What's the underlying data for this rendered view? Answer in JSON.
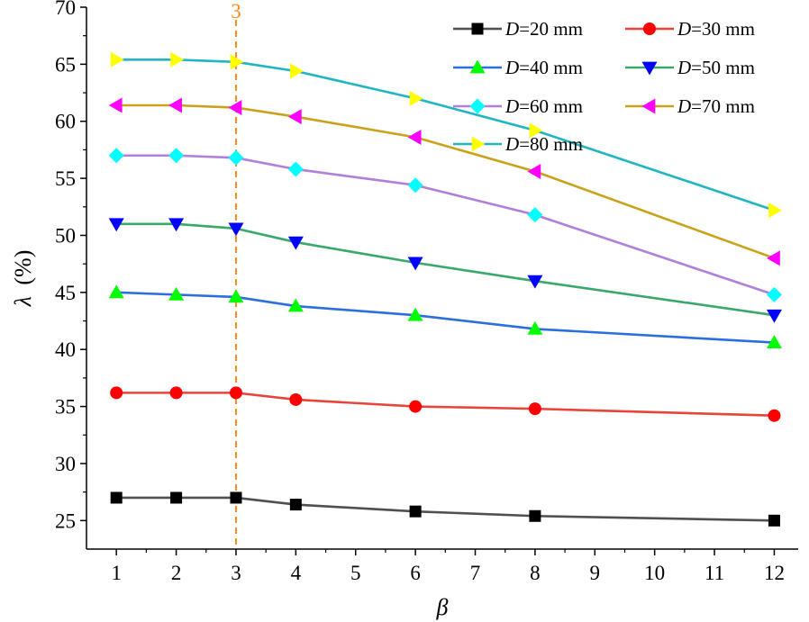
{
  "chart_data": {
    "type": "line",
    "title": "",
    "xlabel": "β",
    "ylabel_symbol": "λ",
    "ylabel_unit": "(%)",
    "xlim": [
      0.5,
      12.4
    ],
    "ylim": [
      22.5,
      70
    ],
    "x_ticks": [
      1,
      2,
      3,
      4,
      5,
      6,
      7,
      8,
      9,
      10,
      11,
      12
    ],
    "y_ticks": [
      25,
      30,
      35,
      40,
      45,
      50,
      55,
      60,
      65,
      70
    ],
    "x": [
      1,
      2,
      3,
      4,
      6,
      8,
      12
    ],
    "vertical_marker": {
      "x": 3,
      "label": "3",
      "color": "#ff8c1a"
    },
    "legend_position": "top-right",
    "series": [
      {
        "name": "D=20 mm",
        "var": "D",
        "text": "=20 mm",
        "line_color": "#505050",
        "marker": "square",
        "marker_color": "#000000",
        "values": [
          27.0,
          27.0,
          27.0,
          26.4,
          25.8,
          25.4,
          25.0
        ]
      },
      {
        "name": "D=30 mm",
        "var": "D",
        "text": "=30 mm",
        "line_color": "#e8443a",
        "marker": "circle",
        "marker_color": "#ff0000",
        "values": [
          36.2,
          36.2,
          36.2,
          35.6,
          35.0,
          34.8,
          34.2
        ]
      },
      {
        "name": "D=40 mm",
        "var": "D",
        "text": "=40 mm",
        "line_color": "#2a6fdb",
        "marker": "triangle-up",
        "marker_color": "#00ff00",
        "values": [
          45.0,
          44.8,
          44.6,
          43.8,
          43.0,
          41.8,
          40.6
        ]
      },
      {
        "name": "D=50 mm",
        "var": "D",
        "text": "=50 mm",
        "line_color": "#3aa86b",
        "marker": "triangle-down",
        "marker_color": "#0000ff",
        "values": [
          51.0,
          51.0,
          50.6,
          49.4,
          47.6,
          46.0,
          43.0
        ]
      },
      {
        "name": "D=60 mm",
        "var": "D",
        "text": "=60 mm",
        "line_color": "#b07fdc",
        "marker": "diamond",
        "marker_color": "#00ffff",
        "values": [
          57.0,
          57.0,
          56.8,
          55.8,
          54.4,
          51.8,
          44.8
        ]
      },
      {
        "name": "D=70 mm",
        "var": "D",
        "text": "=70 mm",
        "line_color": "#c9a21a",
        "marker": "triangle-left",
        "marker_color": "#ff00ff",
        "values": [
          61.4,
          61.4,
          61.2,
          60.4,
          58.6,
          55.6,
          48.0
        ]
      },
      {
        "name": "D=80 mm",
        "var": "D",
        "text": "=80 mm",
        "line_color": "#1fb5c2",
        "marker": "triangle-right",
        "marker_color": "#ffff00",
        "values": [
          65.4,
          65.4,
          65.2,
          64.4,
          62.0,
          59.2,
          52.2
        ]
      }
    ]
  }
}
